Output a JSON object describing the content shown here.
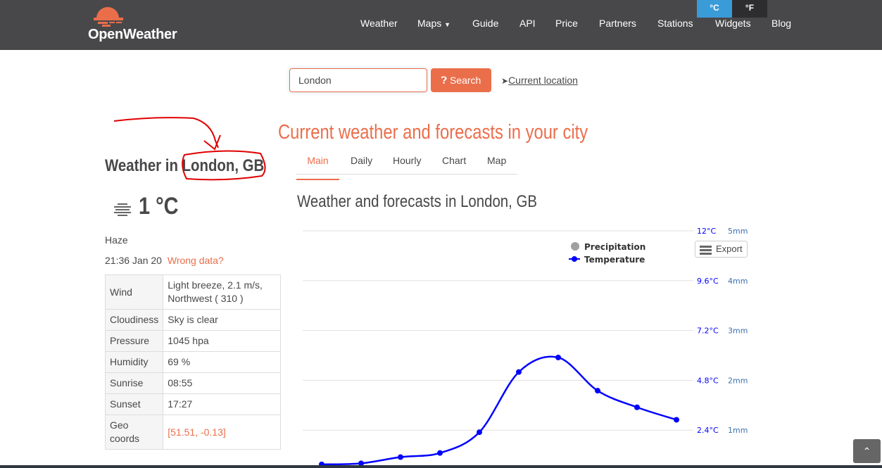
{
  "header": {
    "brand": "OpenWeather",
    "nav": [
      "Weather",
      "Maps",
      "Guide",
      "API",
      "Price",
      "Partners",
      "Stations",
      "Widgets",
      "Blog"
    ],
    "units": [
      "°C",
      "°F"
    ],
    "active_unit": "°C"
  },
  "search": {
    "value": "London",
    "button": "Search",
    "current_location": "Current location"
  },
  "headline": "Current weather and forecasts in your city",
  "current": {
    "title_prefix": "Weather in",
    "city": "London, GB",
    "temp": "1 °C",
    "icon": "haze-icon",
    "description": "Haze",
    "time": "21:36 Jan 20",
    "wrong_data": "Wrong data?",
    "details": [
      [
        "Wind",
        "Light breeze, 2.1 m/s, Northwest ( 310 )"
      ],
      [
        "Cloudiness",
        "Sky is clear"
      ],
      [
        "Pressure",
        "1045 hpa"
      ],
      [
        "Humidity",
        "69 %"
      ],
      [
        "Sunrise",
        "08:55"
      ],
      [
        "Sunset",
        "17:27"
      ],
      [
        "Geo coords",
        "[51.51, -0.13]"
      ]
    ]
  },
  "tabs": [
    "Main",
    "Daily",
    "Hourly",
    "Chart",
    "Map"
  ],
  "active_tab": "Main",
  "chart_title": "Weather and forecasts in London, GB",
  "export": "Export",
  "colors": {
    "accent": "#eb6e4b",
    "temperature": "#0000ff",
    "precipitation": "#a0a0a0",
    "annotation": "#e00000"
  },
  "chart_data": {
    "type": "line",
    "legend": [
      "Precipitation",
      "Temperature"
    ],
    "legend_position": "top-right",
    "y_temp_ticks": [
      "2.4°C",
      "4.8°C",
      "7.2°C",
      "9.6°C",
      "12°C"
    ],
    "y_precip_ticks": [
      "1mm",
      "2mm",
      "3mm",
      "4mm",
      "5mm"
    ],
    "y_temp_range": [
      0,
      12
    ],
    "y_precip_range": [
      0,
      5
    ],
    "grid": true,
    "series": [
      {
        "name": "Temperature",
        "values": [
          0.75,
          0.8,
          1.1,
          1.3,
          2.3,
          5.2,
          5.9,
          4.3,
          3.5,
          2.9
        ]
      },
      {
        "name": "Precipitation",
        "values": []
      }
    ]
  }
}
